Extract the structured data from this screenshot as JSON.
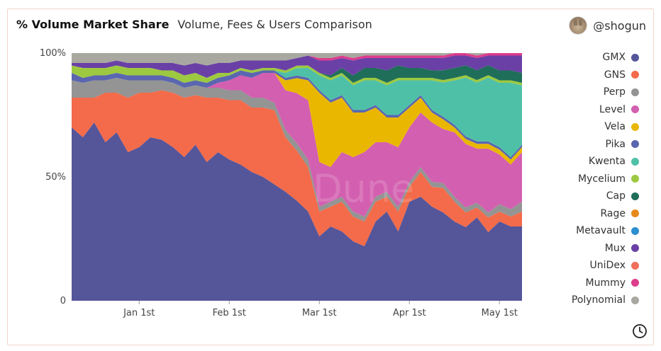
{
  "header": {
    "title": "% Volume Market Share",
    "subtitle": "Volume, Fees & Users Comparison"
  },
  "author": {
    "name": "@shogun"
  },
  "watermark": "Dune",
  "icons": {
    "clock": "clock-icon",
    "avatar": "avatar-icon"
  },
  "chart_data": {
    "type": "area",
    "stacked": true,
    "normalized": true,
    "title": "% Volume Market Share",
    "xlabel": "",
    "ylabel": "",
    "ylim": [
      0,
      100
    ],
    "y_ticks": [
      {
        "value": 0,
        "label": "0"
      },
      {
        "value": 50,
        "label": "50%"
      },
      {
        "value": 100,
        "label": "100%"
      }
    ],
    "x_ticks": [
      {
        "index": 6,
        "label": "Jan 1st"
      },
      {
        "index": 14,
        "label": "Feb 1st"
      },
      {
        "index": 22,
        "label": "Mar 1st"
      },
      {
        "index": 30,
        "label": "Apr 1st"
      },
      {
        "index": 38,
        "label": "May 1st"
      }
    ],
    "x": [
      "Dec 8",
      "Dec 12",
      "Dec 16",
      "Dec 20",
      "Dec 24",
      "Dec 28",
      "Jan 1",
      "Jan 5",
      "Jan 9",
      "Jan 13",
      "Jan 17",
      "Jan 21",
      "Jan 25",
      "Jan 29",
      "Feb 1",
      "Feb 5",
      "Feb 9",
      "Feb 13",
      "Feb 17",
      "Feb 21",
      "Feb 25",
      "Feb 28",
      "Mar 1",
      "Mar 5",
      "Mar 9",
      "Mar 13",
      "Mar 17",
      "Mar 21",
      "Mar 25",
      "Mar 29",
      "Apr 1",
      "Apr 5",
      "Apr 9",
      "Apr 13",
      "Apr 17",
      "Apr 21",
      "Apr 25",
      "Apr 29",
      "May 1",
      "May 5",
      "May 8"
    ],
    "legend_position": "right",
    "series": [
      {
        "name": "GMX",
        "color": "#55559a",
        "values": [
          70,
          66,
          72,
          64,
          68,
          60,
          62,
          66,
          65,
          62,
          58,
          63,
          56,
          60,
          57,
          55,
          52,
          50,
          47,
          44,
          40,
          36,
          26,
          30,
          28,
          24,
          22,
          32,
          36,
          28,
          40,
          42,
          38,
          36,
          32,
          30,
          34,
          28,
          32,
          30,
          30
        ]
      },
      {
        "name": "GNS",
        "color": "#f36b4a",
        "values": [
          12,
          16,
          10,
          20,
          16,
          22,
          22,
          18,
          20,
          22,
          24,
          20,
          26,
          22,
          24,
          26,
          26,
          28,
          30,
          22,
          20,
          18,
          10,
          8,
          12,
          10,
          10,
          8,
          6,
          8,
          6,
          10,
          8,
          10,
          8,
          6,
          4,
          6,
          4,
          4,
          6
        ]
      },
      {
        "name": "Perp",
        "color": "#949494",
        "values": [
          7,
          6,
          7,
          5,
          6,
          7,
          5,
          5,
          4,
          4,
          4,
          4,
          4,
          4,
          4,
          4,
          4,
          4,
          3,
          3,
          3,
          3,
          2,
          2,
          2,
          2,
          2,
          2,
          2,
          2,
          2,
          2,
          2,
          2,
          2,
          2,
          2,
          2,
          3,
          3,
          4
        ]
      },
      {
        "name": "Level",
        "color": "#d35fb0",
        "values": [
          0,
          0,
          0,
          0,
          0,
          0,
          0,
          0,
          0,
          0,
          0,
          0,
          0,
          2,
          4,
          6,
          8,
          10,
          12,
          16,
          20,
          24,
          18,
          14,
          18,
          22,
          26,
          22,
          20,
          24,
          22,
          22,
          24,
          22,
          26,
          26,
          22,
          26,
          20,
          18,
          20
        ]
      },
      {
        "name": "Vela",
        "color": "#eab700",
        "values": [
          0,
          0,
          0,
          0,
          0,
          0,
          0,
          0,
          0,
          0,
          0,
          0,
          0,
          0,
          0,
          0,
          0,
          0,
          0,
          4,
          6,
          8,
          28,
          26,
          22,
          18,
          16,
          14,
          10,
          12,
          8,
          6,
          4,
          4,
          2,
          2,
          2,
          2,
          2,
          2,
          2
        ]
      },
      {
        "name": "Pika",
        "color": "#5a66b0",
        "values": [
          3,
          2,
          2,
          2,
          2,
          2,
          2,
          2,
          2,
          2,
          2,
          2,
          2,
          2,
          2,
          2,
          2,
          1,
          1,
          1,
          1,
          1,
          1,
          1,
          1,
          1,
          1,
          1,
          1,
          1,
          1,
          1,
          1,
          1,
          1,
          1,
          1,
          1,
          1,
          1,
          1
        ]
      },
      {
        "name": "Kwenta",
        "color": "#4fc0a8",
        "values": [
          0,
          0,
          0,
          0,
          0,
          0,
          0,
          0,
          0,
          0,
          0,
          0,
          0,
          0,
          0,
          0,
          0,
          0,
          0,
          2,
          3,
          4,
          6,
          8,
          8,
          10,
          12,
          10,
          12,
          14,
          10,
          6,
          12,
          14,
          18,
          24,
          24,
          26,
          26,
          30,
          24
        ]
      },
      {
        "name": "Mycelium",
        "color": "#9dc940",
        "values": [
          3,
          4,
          3,
          3,
          3,
          3,
          3,
          3,
          2,
          3,
          3,
          3,
          2,
          2,
          1,
          1,
          1,
          1,
          1,
          1,
          1,
          1,
          1,
          1,
          1,
          1,
          1,
          1,
          1,
          1,
          1,
          1,
          1,
          1,
          1,
          1,
          1,
          1,
          1,
          1,
          1
        ]
      },
      {
        "name": "Cap",
        "color": "#1f6e5a",
        "values": [
          0,
          0,
          0,
          0,
          0,
          0,
          0,
          0,
          0,
          0,
          0,
          0,
          0,
          0,
          0,
          0,
          0,
          0,
          0,
          0,
          0,
          0,
          0,
          1,
          2,
          3,
          4,
          4,
          5,
          5,
          4,
          4,
          3,
          4,
          4,
          4,
          4,
          4,
          4,
          4,
          4
        ]
      },
      {
        "name": "Rage",
        "color": "#e58a1a",
        "values": [
          0,
          0,
          0,
          0,
          0,
          0,
          0,
          0,
          0,
          0,
          0,
          0,
          0,
          0,
          0,
          0,
          0,
          0,
          0,
          0,
          0,
          0,
          0,
          0,
          0,
          0,
          0,
          0,
          0,
          0,
          0,
          0,
          0,
          0,
          0,
          0,
          0,
          0,
          0,
          0,
          0
        ]
      },
      {
        "name": "Metavault",
        "color": "#2b8fd0",
        "values": [
          0,
          0,
          0,
          0,
          0,
          0,
          0,
          0,
          0,
          0,
          0,
          0,
          0,
          0,
          0,
          0,
          0,
          0,
          0,
          0,
          0,
          0,
          0,
          0,
          0,
          0,
          0,
          0,
          0,
          0,
          0,
          0,
          0,
          0,
          0,
          0,
          0,
          0,
          0,
          0,
          0
        ]
      },
      {
        "name": "Mux",
        "color": "#6a40a6",
        "values": [
          1,
          2,
          2,
          2,
          2,
          2,
          2,
          2,
          3,
          3,
          4,
          4,
          5,
          4,
          4,
          3,
          4,
          3,
          3,
          4,
          3,
          4,
          5,
          6,
          4,
          6,
          4,
          4,
          5,
          3,
          4,
          4,
          5,
          5,
          5,
          4,
          5,
          4,
          6,
          6,
          7
        ]
      },
      {
        "name": "UniDex",
        "color": "#f0705a",
        "values": [
          0,
          0,
          0,
          0,
          0,
          0,
          0,
          0,
          0,
          0,
          0,
          0,
          0,
          0,
          0,
          0,
          0,
          0,
          0,
          0,
          0,
          0,
          0,
          0,
          0,
          0,
          0,
          0,
          0,
          0,
          0,
          0,
          0,
          0,
          0,
          0,
          0,
          0,
          0,
          0,
          0
        ]
      },
      {
        "name": "Mummy",
        "color": "#dd3d8c",
        "values": [
          0,
          0,
          0,
          0,
          0,
          0,
          0,
          0,
          0,
          0,
          0,
          0,
          0,
          0,
          0,
          0,
          0,
          0,
          0,
          0,
          0,
          0,
          1,
          1,
          1,
          1,
          1,
          1,
          1,
          1,
          1,
          1,
          1,
          1,
          1,
          1,
          1,
          1,
          1,
          1,
          1
        ]
      },
      {
        "name": "Polynomial",
        "color": "#a8a8a0",
        "values": [
          4,
          4,
          4,
          4,
          3,
          4,
          4,
          4,
          4,
          4,
          5,
          4,
          5,
          4,
          4,
          3,
          3,
          3,
          3,
          3,
          2,
          1,
          2,
          2,
          1,
          2,
          1,
          1,
          1,
          1,
          1,
          1,
          1,
          1,
          0,
          0,
          1,
          0,
          0,
          0,
          0
        ]
      }
    ]
  }
}
